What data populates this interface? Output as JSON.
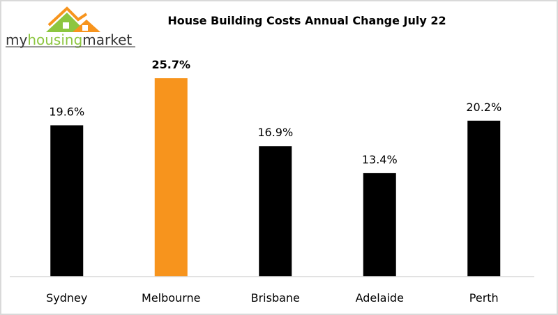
{
  "chart_data": {
    "type": "bar",
    "title": "House Building Costs Annual Change July 22",
    "categories": [
      "Sydney",
      "Melbourne",
      "Brisbane",
      "Adelaide",
      "Perth"
    ],
    "values": [
      19.6,
      25.7,
      16.9,
      13.4,
      20.2
    ],
    "data_labels": [
      "19.6%",
      "25.7%",
      "16.9%",
      "13.4%",
      "20.2%"
    ],
    "highlight_index": 1,
    "unit": "%",
    "ylim": [
      0,
      25.7
    ],
    "grid": false,
    "legend": "none",
    "colors": {
      "default": "#000000",
      "highlight": "#f7941d",
      "axis": "#d9d9d9"
    }
  },
  "logo": {
    "text_my": "my",
    "text_housing": "housing",
    "text_market": "market",
    "colors": {
      "orange": "#f7941d",
      "green": "#8cc63f",
      "dark": "#333333"
    }
  }
}
